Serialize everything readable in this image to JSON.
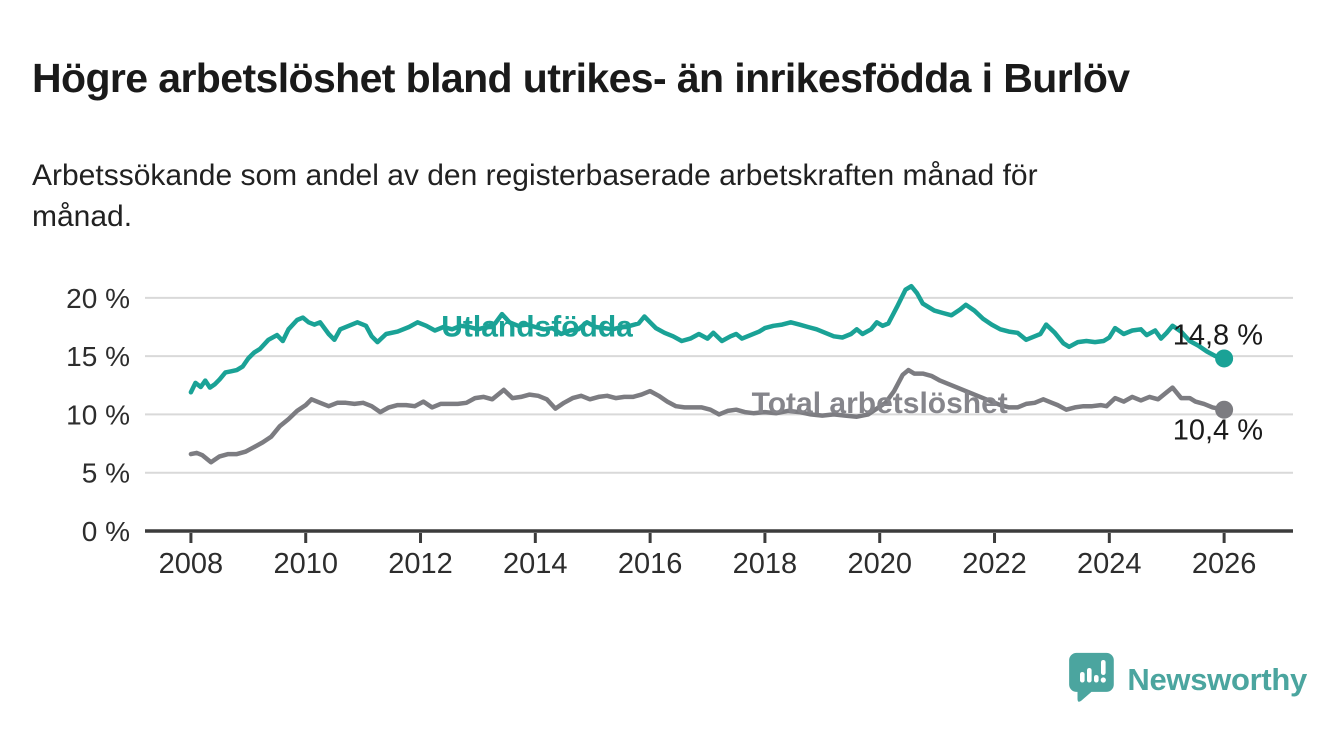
{
  "header": {
    "title": "Högre arbetslöshet bland utrikes- än inrikesfödda i Burlöv",
    "subtitle": "Arbetssökande som andel av den registerbaserade arbetskraften månad för\nmånad."
  },
  "footer": {
    "brand": "Newsworthy",
    "logo_icon": "bar-chart-speech-bubble-icon",
    "brand_color": "#4ba59f"
  },
  "colors": {
    "background": "#ffffff",
    "title_text": "#1a1a1a",
    "axis_line": "#3c3c3c",
    "grid_line": "#d9d9d9",
    "tick_text": "#2d2d2d",
    "end_label_text": "#1a1a1a",
    "series_foreign_born": "#1aa296",
    "series_total": "#7c7c81"
  },
  "chart_data": {
    "type": "line",
    "title": "Högre arbetslöshet bland utrikes- än inrikesfödda i Burlöv",
    "subtitle": "Arbetssökande som andel av den registerbaserade arbetskraften månad för månad.",
    "xlabel": "",
    "ylabel": "",
    "x_unit": "year (monthly observations)",
    "y_unit": "%",
    "xlim": [
      2007.2,
      2027.2
    ],
    "ylim": [
      0,
      21.7
    ],
    "grid": "horizontal",
    "legend_position": "inline-labels",
    "xticks": [
      2008,
      2010,
      2012,
      2014,
      2016,
      2018,
      2020,
      2022,
      2024,
      2026
    ],
    "yticks": [
      {
        "value": 0,
        "label": "0 %"
      },
      {
        "value": 5,
        "label": "5 %"
      },
      {
        "value": 10,
        "label": "10 %"
      },
      {
        "value": 15,
        "label": "15 %"
      },
      {
        "value": 20,
        "label": "20 %"
      }
    ],
    "series": [
      {
        "name": "Total arbetslöshet",
        "color": "#7c7c81",
        "label_color": "#85858b",
        "label_pos": {
          "x": 2020.0,
          "y": 10.1
        },
        "end_value": 10.4,
        "end_label": "10,4 %",
        "end_label_dy": 30,
        "points": [
          [
            2008.0,
            6.6
          ],
          [
            2008.1,
            6.7
          ],
          [
            2008.2,
            6.5
          ],
          [
            2008.35,
            5.9
          ],
          [
            2008.5,
            6.4
          ],
          [
            2008.65,
            6.6
          ],
          [
            2008.8,
            6.6
          ],
          [
            2008.95,
            6.8
          ],
          [
            2009.1,
            7.2
          ],
          [
            2009.25,
            7.6
          ],
          [
            2009.4,
            8.1
          ],
          [
            2009.55,
            9.0
          ],
          [
            2009.7,
            9.6
          ],
          [
            2009.85,
            10.3
          ],
          [
            2010.0,
            10.8
          ],
          [
            2010.1,
            11.3
          ],
          [
            2010.25,
            11.0
          ],
          [
            2010.4,
            10.7
          ],
          [
            2010.55,
            11.0
          ],
          [
            2010.7,
            11.0
          ],
          [
            2010.85,
            10.9
          ],
          [
            2011.0,
            11.0
          ],
          [
            2011.15,
            10.7
          ],
          [
            2011.3,
            10.2
          ],
          [
            2011.45,
            10.6
          ],
          [
            2011.6,
            10.8
          ],
          [
            2011.75,
            10.8
          ],
          [
            2011.9,
            10.7
          ],
          [
            2012.05,
            11.1
          ],
          [
            2012.2,
            10.6
          ],
          [
            2012.35,
            10.9
          ],
          [
            2012.5,
            10.9
          ],
          [
            2012.65,
            10.9
          ],
          [
            2012.8,
            11.0
          ],
          [
            2012.95,
            11.4
          ],
          [
            2013.1,
            11.5
          ],
          [
            2013.25,
            11.3
          ],
          [
            2013.45,
            12.1
          ],
          [
            2013.6,
            11.4
          ],
          [
            2013.75,
            11.5
          ],
          [
            2013.9,
            11.7
          ],
          [
            2014.05,
            11.6
          ],
          [
            2014.2,
            11.3
          ],
          [
            2014.35,
            10.5
          ],
          [
            2014.5,
            11.0
          ],
          [
            2014.65,
            11.4
          ],
          [
            2014.8,
            11.6
          ],
          [
            2014.95,
            11.3
          ],
          [
            2015.1,
            11.5
          ],
          [
            2015.25,
            11.6
          ],
          [
            2015.4,
            11.4
          ],
          [
            2015.55,
            11.5
          ],
          [
            2015.7,
            11.5
          ],
          [
            2015.85,
            11.7
          ],
          [
            2016.0,
            12.0
          ],
          [
            2016.15,
            11.6
          ],
          [
            2016.3,
            11.1
          ],
          [
            2016.45,
            10.7
          ],
          [
            2016.6,
            10.6
          ],
          [
            2016.75,
            10.6
          ],
          [
            2016.9,
            10.6
          ],
          [
            2017.05,
            10.4
          ],
          [
            2017.2,
            10.0
          ],
          [
            2017.35,
            10.3
          ],
          [
            2017.5,
            10.4
          ],
          [
            2017.65,
            10.2
          ],
          [
            2017.8,
            10.1
          ],
          [
            2018.0,
            10.2
          ],
          [
            2018.2,
            10.1
          ],
          [
            2018.4,
            10.3
          ],
          [
            2018.6,
            10.2
          ],
          [
            2018.8,
            10.0
          ],
          [
            2019.0,
            9.9
          ],
          [
            2019.2,
            10.0
          ],
          [
            2019.4,
            9.9
          ],
          [
            2019.6,
            9.8
          ],
          [
            2019.8,
            10.0
          ],
          [
            2019.95,
            10.5
          ],
          [
            2020.1,
            11.0
          ],
          [
            2020.25,
            12.0
          ],
          [
            2020.4,
            13.4
          ],
          [
            2020.5,
            13.8
          ],
          [
            2020.6,
            13.5
          ],
          [
            2020.75,
            13.5
          ],
          [
            2020.9,
            13.3
          ],
          [
            2021.05,
            12.9
          ],
          [
            2021.2,
            12.6
          ],
          [
            2021.35,
            12.3
          ],
          [
            2021.5,
            12.0
          ],
          [
            2021.65,
            11.7
          ],
          [
            2021.8,
            11.4
          ],
          [
            2021.95,
            11.1
          ],
          [
            2022.1,
            10.8
          ],
          [
            2022.25,
            10.6
          ],
          [
            2022.4,
            10.6
          ],
          [
            2022.55,
            10.9
          ],
          [
            2022.7,
            11.0
          ],
          [
            2022.85,
            11.3
          ],
          [
            2023.0,
            11.0
          ],
          [
            2023.1,
            10.8
          ],
          [
            2023.25,
            10.4
          ],
          [
            2023.4,
            10.6
          ],
          [
            2023.55,
            10.7
          ],
          [
            2023.7,
            10.7
          ],
          [
            2023.85,
            10.8
          ],
          [
            2023.95,
            10.7
          ],
          [
            2024.1,
            11.4
          ],
          [
            2024.25,
            11.1
          ],
          [
            2024.4,
            11.5
          ],
          [
            2024.55,
            11.2
          ],
          [
            2024.7,
            11.5
          ],
          [
            2024.85,
            11.3
          ],
          [
            2025.0,
            11.9
          ],
          [
            2025.1,
            12.3
          ],
          [
            2025.25,
            11.4
          ],
          [
            2025.4,
            11.4
          ],
          [
            2025.5,
            11.1
          ],
          [
            2025.65,
            10.9
          ],
          [
            2025.8,
            10.6
          ],
          [
            2026.0,
            10.4
          ]
        ]
      },
      {
        "name": "Utlandsfödda",
        "color": "#1aa296",
        "label_color": "#1aa296",
        "label_pos": {
          "x": 2014.03,
          "y": 16.7
        },
        "end_value": 14.8,
        "end_label": "14,8 %",
        "end_label_dy": -14,
        "points": [
          [
            2008.0,
            11.9
          ],
          [
            2008.08,
            12.7
          ],
          [
            2008.17,
            12.35
          ],
          [
            2008.25,
            12.9
          ],
          [
            2008.33,
            12.3
          ],
          [
            2008.42,
            12.6
          ],
          [
            2008.5,
            13.0
          ],
          [
            2008.6,
            13.6
          ],
          [
            2008.7,
            13.7
          ],
          [
            2008.8,
            13.8
          ],
          [
            2008.9,
            14.1
          ],
          [
            2009.0,
            14.8
          ],
          [
            2009.1,
            15.3
          ],
          [
            2009.2,
            15.6
          ],
          [
            2009.35,
            16.4
          ],
          [
            2009.5,
            16.8
          ],
          [
            2009.6,
            16.3
          ],
          [
            2009.7,
            17.3
          ],
          [
            2009.85,
            18.1
          ],
          [
            2009.95,
            18.3
          ],
          [
            2010.05,
            17.9
          ],
          [
            2010.15,
            17.7
          ],
          [
            2010.25,
            17.9
          ],
          [
            2010.4,
            16.9
          ],
          [
            2010.5,
            16.4
          ],
          [
            2010.6,
            17.3
          ],
          [
            2010.75,
            17.6
          ],
          [
            2010.9,
            17.9
          ],
          [
            2011.05,
            17.6
          ],
          [
            2011.15,
            16.7
          ],
          [
            2011.25,
            16.2
          ],
          [
            2011.4,
            16.9
          ],
          [
            2011.6,
            17.1
          ],
          [
            2011.8,
            17.5
          ],
          [
            2011.95,
            17.9
          ],
          [
            2012.1,
            17.6
          ],
          [
            2012.25,
            17.2
          ],
          [
            2012.4,
            17.5
          ],
          [
            2012.55,
            17.3
          ],
          [
            2012.7,
            17.6
          ],
          [
            2012.85,
            17.5
          ],
          [
            2013.0,
            17.3
          ],
          [
            2013.15,
            17.5
          ],
          [
            2013.3,
            17.8
          ],
          [
            2013.42,
            18.6
          ],
          [
            2013.55,
            17.9
          ],
          [
            2013.7,
            17.6
          ],
          [
            2013.85,
            17.7
          ],
          [
            2014.0,
            17.5
          ],
          [
            2014.15,
            17.3
          ],
          [
            2014.3,
            17.4
          ],
          [
            2014.45,
            16.9
          ],
          [
            2014.6,
            17.2
          ],
          [
            2014.75,
            17.3
          ],
          [
            2014.9,
            17.9
          ],
          [
            2015.05,
            17.5
          ],
          [
            2015.2,
            17.4
          ],
          [
            2015.35,
            17.3
          ],
          [
            2015.5,
            17.5
          ],
          [
            2015.65,
            17.6
          ],
          [
            2015.8,
            17.8
          ],
          [
            2015.9,
            18.4
          ],
          [
            2016.0,
            17.9
          ],
          [
            2016.1,
            17.4
          ],
          [
            2016.25,
            17.0
          ],
          [
            2016.4,
            16.7
          ],
          [
            2016.55,
            16.3
          ],
          [
            2016.7,
            16.5
          ],
          [
            2016.85,
            16.9
          ],
          [
            2017.0,
            16.5
          ],
          [
            2017.1,
            17.0
          ],
          [
            2017.25,
            16.3
          ],
          [
            2017.4,
            16.7
          ],
          [
            2017.5,
            16.9
          ],
          [
            2017.6,
            16.5
          ],
          [
            2017.75,
            16.8
          ],
          [
            2017.9,
            17.1
          ],
          [
            2018.0,
            17.4
          ],
          [
            2018.15,
            17.6
          ],
          [
            2018.3,
            17.7
          ],
          [
            2018.45,
            17.9
          ],
          [
            2018.6,
            17.7
          ],
          [
            2018.75,
            17.5
          ],
          [
            2018.9,
            17.3
          ],
          [
            2019.05,
            17.0
          ],
          [
            2019.2,
            16.7
          ],
          [
            2019.35,
            16.6
          ],
          [
            2019.5,
            16.9
          ],
          [
            2019.6,
            17.3
          ],
          [
            2019.7,
            16.9
          ],
          [
            2019.85,
            17.3
          ],
          [
            2019.95,
            17.9
          ],
          [
            2020.05,
            17.6
          ],
          [
            2020.15,
            17.8
          ],
          [
            2020.3,
            19.2
          ],
          [
            2020.45,
            20.7
          ],
          [
            2020.55,
            21.0
          ],
          [
            2020.65,
            20.4
          ],
          [
            2020.75,
            19.5
          ],
          [
            2020.85,
            19.2
          ],
          [
            2020.95,
            18.9
          ],
          [
            2021.1,
            18.7
          ],
          [
            2021.25,
            18.5
          ],
          [
            2021.4,
            19.0
          ],
          [
            2021.5,
            19.4
          ],
          [
            2021.65,
            18.9
          ],
          [
            2021.8,
            18.2
          ],
          [
            2021.95,
            17.7
          ],
          [
            2022.1,
            17.3
          ],
          [
            2022.25,
            17.1
          ],
          [
            2022.4,
            17.0
          ],
          [
            2022.55,
            16.4
          ],
          [
            2022.7,
            16.7
          ],
          [
            2022.8,
            16.9
          ],
          [
            2022.9,
            17.7
          ],
          [
            2023.05,
            17.0
          ],
          [
            2023.2,
            16.1
          ],
          [
            2023.3,
            15.8
          ],
          [
            2023.45,
            16.2
          ],
          [
            2023.6,
            16.3
          ],
          [
            2023.75,
            16.2
          ],
          [
            2023.9,
            16.3
          ],
          [
            2024.0,
            16.6
          ],
          [
            2024.1,
            17.4
          ],
          [
            2024.25,
            16.9
          ],
          [
            2024.4,
            17.2
          ],
          [
            2024.55,
            17.3
          ],
          [
            2024.65,
            16.8
          ],
          [
            2024.8,
            17.2
          ],
          [
            2024.9,
            16.5
          ],
          [
            2025.0,
            17.0
          ],
          [
            2025.1,
            17.6
          ],
          [
            2025.25,
            17.1
          ],
          [
            2025.4,
            16.3
          ],
          [
            2025.55,
            15.9
          ],
          [
            2025.7,
            15.4
          ],
          [
            2025.85,
            15.0
          ],
          [
            2026.0,
            14.8
          ]
        ]
      }
    ]
  }
}
